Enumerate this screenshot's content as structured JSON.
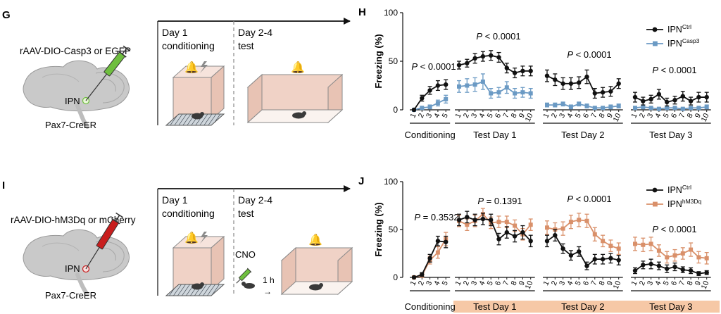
{
  "panel_letters": {
    "g": "G",
    "h": "H",
    "i": "I",
    "j": "J"
  },
  "panel_g": {
    "virus_label": "rAAV-DIO-Casp3 or EGFP",
    "region_label": "IPN",
    "mouse_line": "Pax7-CreER",
    "timeline_day1": "Day 1",
    "timeline_day1_sub": "conditioning",
    "timeline_day2": "Day 2-4",
    "timeline_day2_sub": "test",
    "syringe_color": "#6fbf3f"
  },
  "panel_i": {
    "virus_label": "rAAV-DIO-hM3Dq or mCherry",
    "region_label": "IPN",
    "mouse_line": "Pax7-CreER",
    "timeline_day1": "Day 1",
    "timeline_day1_sub": "conditioning",
    "timeline_day2": "Day 2-4",
    "timeline_day2_sub": "test",
    "cno_label": "CNO",
    "delay_label": "1 h",
    "syringe_color": "#c81e1e"
  },
  "chart_data": [
    {
      "panel": "H",
      "type": "line",
      "ylabel": "Freezing (%)",
      "ylim": [
        0,
        100
      ],
      "yticks": [
        0,
        50,
        100
      ],
      "grid": false,
      "legend_position": "top-right",
      "sections": [
        {
          "label": "Conditioning",
          "x": [
            "1",
            "2",
            "3",
            "4",
            "5"
          ],
          "p_text": "P < 0.0001"
        },
        {
          "label": "Test Day 1",
          "x": [
            "1",
            "2",
            "3",
            "4",
            "5",
            "6",
            "7",
            "8",
            "9",
            "10"
          ],
          "p_text": "P < 0.0001"
        },
        {
          "label": "Test Day 2",
          "x": [
            "1",
            "2",
            "3",
            "4",
            "5",
            "6",
            "7",
            "8",
            "9",
            "10"
          ],
          "p_text": "P < 0.0001"
        },
        {
          "label": "Test Day 3",
          "x": [
            "1",
            "2",
            "3",
            "4",
            "5",
            "6",
            "7",
            "8",
            "9",
            "10"
          ],
          "p_text": "P < 0.0001"
        }
      ],
      "series": [
        {
          "name_base": "IPN",
          "name_sup": "Ctrl",
          "color": "#111111",
          "marker": "circle",
          "values": [
            [
              0,
              12,
              20,
              25,
              26
            ],
            [
              46,
              48,
              53,
              55,
              56,
              54,
              43,
              38,
              40,
              40
            ],
            [
              35,
              31,
              27,
              27,
              28,
              34,
              17,
              18,
              19,
              27
            ],
            [
              13,
              9,
              11,
              16,
              8,
              10,
              14,
              9,
              13,
              13
            ]
          ],
          "errors": [
            [
              0,
              3,
              4,
              5,
              5
            ],
            [
              4,
              4,
              5,
              5,
              5,
              5,
              5,
              5,
              5,
              5
            ],
            [
              6,
              6,
              6,
              6,
              6,
              7,
              5,
              5,
              5,
              5
            ],
            [
              5,
              4,
              4,
              5,
              4,
              4,
              5,
              4,
              5,
              5
            ]
          ]
        },
        {
          "name_base": "IPN",
          "name_sup": "Casp3",
          "color": "#6b9ac4",
          "marker": "square",
          "values": [
            [
              0,
              2,
              3,
              7,
              11
            ],
            [
              24,
              25,
              26,
              29,
              17,
              18,
              23,
              17,
              18,
              17
            ],
            [
              5,
              5,
              6,
              3,
              6,
              4,
              2,
              2,
              3,
              4
            ],
            [
              2,
              3,
              2,
              1,
              2,
              2,
              1,
              2,
              2,
              3
            ]
          ],
          "errors": [
            [
              0,
              1,
              2,
              3,
              4
            ],
            [
              6,
              7,
              7,
              8,
              5,
              5,
              6,
              5,
              5,
              5
            ],
            [
              2,
              2,
              2,
              2,
              2,
              2,
              1,
              1,
              2,
              2
            ],
            [
              1,
              2,
              1,
              1,
              1,
              1,
              1,
              1,
              1,
              2
            ]
          ]
        }
      ]
    },
    {
      "panel": "J",
      "type": "line",
      "ylabel": "Freezing (%)",
      "ylim": [
        0,
        100
      ],
      "yticks": [
        0,
        50,
        100
      ],
      "grid": false,
      "legend_position": "top-right",
      "shaded_color": "#f6c8a6",
      "sections": [
        {
          "label": "Conditioning",
          "x": [
            "1",
            "2",
            "3",
            "4",
            "5"
          ],
          "p_text": "P = 0.3532",
          "shaded": false
        },
        {
          "label": "Test Day 1",
          "x": [
            "1",
            "2",
            "3",
            "4",
            "5",
            "6",
            "7",
            "8",
            "9",
            "10"
          ],
          "p_text": "P = 0.1391",
          "shaded": true
        },
        {
          "label": "Test Day 2",
          "x": [
            "1",
            "2",
            "3",
            "4",
            "5",
            "6",
            "7",
            "8",
            "9",
            "10"
          ],
          "p_text": "P < 0.0001",
          "shaded": true
        },
        {
          "label": "Test Day 3",
          "x": [
            "1",
            "2",
            "3",
            "4",
            "5",
            "6",
            "7",
            "8",
            "9",
            "10"
          ],
          "p_text": "P < 0.0001",
          "shaded": true
        }
      ],
      "series": [
        {
          "name_base": "IPN",
          "name_sup": "Ctrl",
          "color": "#111111",
          "marker": "circle",
          "values": [
            [
              0,
              3,
              20,
              38,
              37
            ],
            [
              60,
              63,
              60,
              61,
              60,
              40,
              47,
              43,
              47,
              38
            ],
            [
              38,
              44,
              30,
              23,
              27,
              12,
              19,
              19,
              20,
              18
            ],
            [
              7,
              13,
              14,
              12,
              9,
              11,
              8,
              7,
              4,
              5
            ]
          ],
          "errors": [
            [
              0,
              2,
              4,
              5,
              6
            ],
            [
              6,
              6,
              6,
              6,
              6,
              6,
              6,
              6,
              7,
              6
            ],
            [
              6,
              6,
              5,
              5,
              5,
              4,
              5,
              5,
              5,
              5
            ],
            [
              3,
              4,
              5,
              4,
              4,
              4,
              3,
              3,
              2,
              2
            ]
          ]
        },
        {
          "name_base": "IPN",
          "name_sup": "hM3Dq",
          "color": "#d9906a",
          "marker": "square",
          "values": [
            [
              0,
              2,
              18,
              26,
              40
            ],
            [
              59,
              55,
              59,
              66,
              57,
              58,
              58,
              54,
              45,
              55
            ],
            [
              52,
              50,
              51,
              58,
              60,
              59,
              45,
              38,
              33,
              30
            ],
            [
              35,
              34,
              35,
              28,
              21,
              23,
              25,
              29,
              21,
              20
            ]
          ],
          "errors": [
            [
              0,
              2,
              4,
              6,
              7
            ],
            [
              6,
              6,
              6,
              6,
              6,
              6,
              6,
              6,
              6,
              6
            ],
            [
              7,
              7,
              7,
              7,
              7,
              7,
              7,
              6,
              6,
              6
            ],
            [
              7,
              7,
              7,
              6,
              6,
              6,
              6,
              7,
              6,
              6
            ]
          ]
        }
      ]
    }
  ]
}
